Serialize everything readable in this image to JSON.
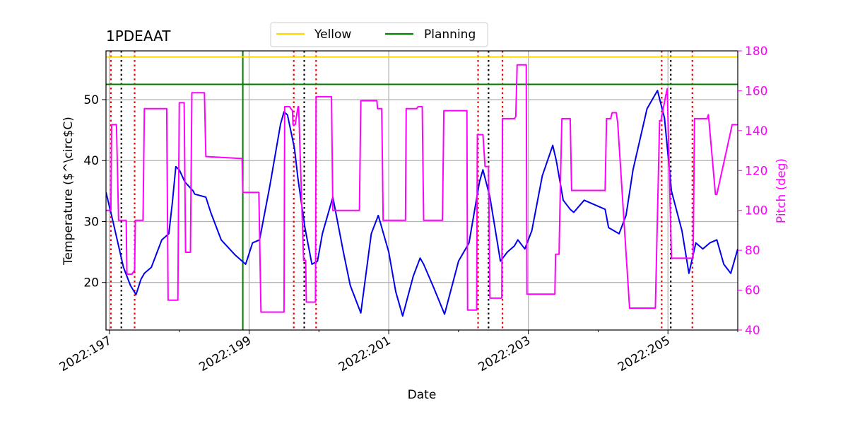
{
  "chart_data": {
    "type": "line",
    "title": "1PDEAAT",
    "xlabel": "Date",
    "ylabel": "Temperature ($^\\circ$C)",
    "ylabel_display": "Temperature ($^\\circ$C)",
    "y2label": "Pitch (deg)",
    "xlim": [
      2022.197,
      2022.206
    ],
    "ylim": [
      12.2,
      58
    ],
    "y2lim": [
      40,
      180
    ],
    "x_ticks": [
      {
        "value": 197,
        "label": "2022:197"
      },
      {
        "value": 199,
        "label": "2022:199"
      },
      {
        "value": 201,
        "label": "2022:201"
      },
      {
        "value": 203,
        "label": "2022:203"
      },
      {
        "value": 205,
        "label": "2022:205"
      }
    ],
    "y_ticks": [
      20,
      30,
      40,
      50
    ],
    "y2_ticks": [
      40,
      60,
      80,
      100,
      120,
      140,
      160,
      180
    ],
    "grid": true,
    "legend": {
      "placement": "top-center",
      "entries": [
        {
          "label": "Yellow",
          "color": "#ffd700"
        },
        {
          "label": "Planning",
          "color": "#008000"
        }
      ]
    },
    "limits": [
      {
        "name": "Yellow",
        "value": 57.0,
        "color": "#ffd700"
      },
      {
        "name": "Planning",
        "value": 52.5,
        "color": "#008000"
      }
    ],
    "planning_start": 198.91,
    "red_vlines": [
      197.02,
      197.36,
      199.64,
      199.96,
      202.28,
      202.63,
      204.91,
      205.35
    ],
    "black_vlines": [
      197.17,
      199.79,
      202.43,
      205.04
    ],
    "colors": {
      "temperature": "#0000ee",
      "pitch": "#ff00ff",
      "red_line": "#ee0000",
      "black_line": "#000000",
      "grid": "#b0b0b0"
    },
    "series": [
      {
        "name": "Temperature",
        "axis": "left",
        "color": "#0000ee",
        "x": [
          196.95,
          197.05,
          197.2,
          197.3,
          197.38,
          197.45,
          197.5,
          197.6,
          197.75,
          197.85,
          197.9,
          197.95,
          198.0,
          198.08,
          198.2,
          198.22,
          198.38,
          198.45,
          198.6,
          198.8,
          198.9,
          198.95,
          199.05,
          199.15,
          199.3,
          199.45,
          199.5,
          199.55,
          199.65,
          199.7,
          199.8,
          199.9,
          199.98,
          200.05,
          200.2,
          200.35,
          200.45,
          200.6,
          200.75,
          200.85,
          201.0,
          201.1,
          201.2,
          201.35,
          201.45,
          201.5,
          201.65,
          201.8,
          202.0,
          202.15,
          202.3,
          202.35,
          202.45,
          202.55,
          202.6,
          202.7,
          202.8,
          202.85,
          202.95,
          203.05,
          203.2,
          203.35,
          203.4,
          203.5,
          203.6,
          203.65,
          203.8,
          204.1,
          204.15,
          204.3,
          204.4,
          204.5,
          204.7,
          204.85,
          204.95,
          205.05,
          205.2,
          205.3,
          205.4,
          205.5,
          205.6,
          205.7,
          205.8,
          205.9,
          206.0
        ],
        "y": [
          34.8,
          30.0,
          22.5,
          19.5,
          18.0,
          20.5,
          21.5,
          22.5,
          27.0,
          28.0,
          33.0,
          39.0,
          38.5,
          36.5,
          35.0,
          34.5,
          34.0,
          31.5,
          27.0,
          24.5,
          23.5,
          23.0,
          26.5,
          27.0,
          36.0,
          46.0,
          48.0,
          47.5,
          42.0,
          37.0,
          29.0,
          23.0,
          23.5,
          28.0,
          34.0,
          25.0,
          19.5,
          15.0,
          28.0,
          31.0,
          25.0,
          18.5,
          14.5,
          21.0,
          24.0,
          23.0,
          19.0,
          14.8,
          23.5,
          26.5,
          36.5,
          38.5,
          34.0,
          27.0,
          23.5,
          25.0,
          26.0,
          27.0,
          25.5,
          28.5,
          37.5,
          42.5,
          40.0,
          33.5,
          32.0,
          31.5,
          33.5,
          32.0,
          29.0,
          28.0,
          31.0,
          38.5,
          48.5,
          51.5,
          47.0,
          35.0,
          28.5,
          21.5,
          26.5,
          25.5,
          26.5,
          27.0,
          23.0,
          21.5,
          25.5
        ]
      },
      {
        "name": "Pitch",
        "axis": "right",
        "color": "#ff00ff",
        "x": [
          196.95,
          197.02,
          197.03,
          197.1,
          197.13,
          197.24,
          197.25,
          197.32,
          197.36,
          197.37,
          197.48,
          197.5,
          197.82,
          197.84,
          197.98,
          198.0,
          198.07,
          198.09,
          198.16,
          198.18,
          198.36,
          198.38,
          198.9,
          198.91,
          199.14,
          199.17,
          199.5,
          199.51,
          199.58,
          199.62,
          199.63,
          199.66,
          199.7,
          199.71,
          199.78,
          199.79,
          199.81,
          199.82,
          199.95,
          199.96,
          200.18,
          200.2,
          200.58,
          200.6,
          200.83,
          200.84,
          200.9,
          200.92,
          201.24,
          201.25,
          201.4,
          201.42,
          201.48,
          201.5,
          201.77,
          201.79,
          202.12,
          202.13,
          202.26,
          202.27,
          202.35,
          202.38,
          202.43,
          202.45,
          202.62,
          202.63,
          202.8,
          202.82,
          202.84,
          202.97,
          202.98,
          203.38,
          203.39,
          203.44,
          203.46,
          203.48,
          203.6,
          203.62,
          204.1,
          204.12,
          204.18,
          204.2,
          204.26,
          204.28,
          204.45,
          204.8,
          204.82,
          204.88,
          204.9,
          204.97,
          204.99,
          205.05,
          205.07,
          205.36,
          205.38,
          205.56,
          205.58,
          205.68,
          205.7,
          205.92,
          206.0
        ],
        "y": [
          100,
          100,
          143,
          143,
          95,
          95,
          68,
          68,
          70,
          95,
          95,
          151,
          151,
          55,
          55,
          154,
          154,
          79,
          79,
          159,
          159,
          127,
          126,
          109,
          109,
          49,
          49,
          152,
          152,
          150,
          143,
          143,
          152,
          152,
          75,
          75,
          75,
          54,
          54,
          157,
          157,
          100,
          100,
          155,
          155,
          151,
          151,
          95,
          95,
          151,
          151,
          152,
          152,
          95,
          95,
          150,
          150,
          50,
          50,
          138,
          138,
          122,
          122,
          56,
          56,
          146,
          146,
          147,
          173,
          173,
          58,
          58,
          78,
          78,
          114,
          146,
          146,
          110,
          110,
          146,
          146,
          149,
          149,
          144,
          51,
          51,
          51,
          145,
          145,
          158,
          161,
          76,
          76,
          76,
          146,
          146,
          148,
          108,
          108,
          143,
          143
        ]
      }
    ]
  }
}
